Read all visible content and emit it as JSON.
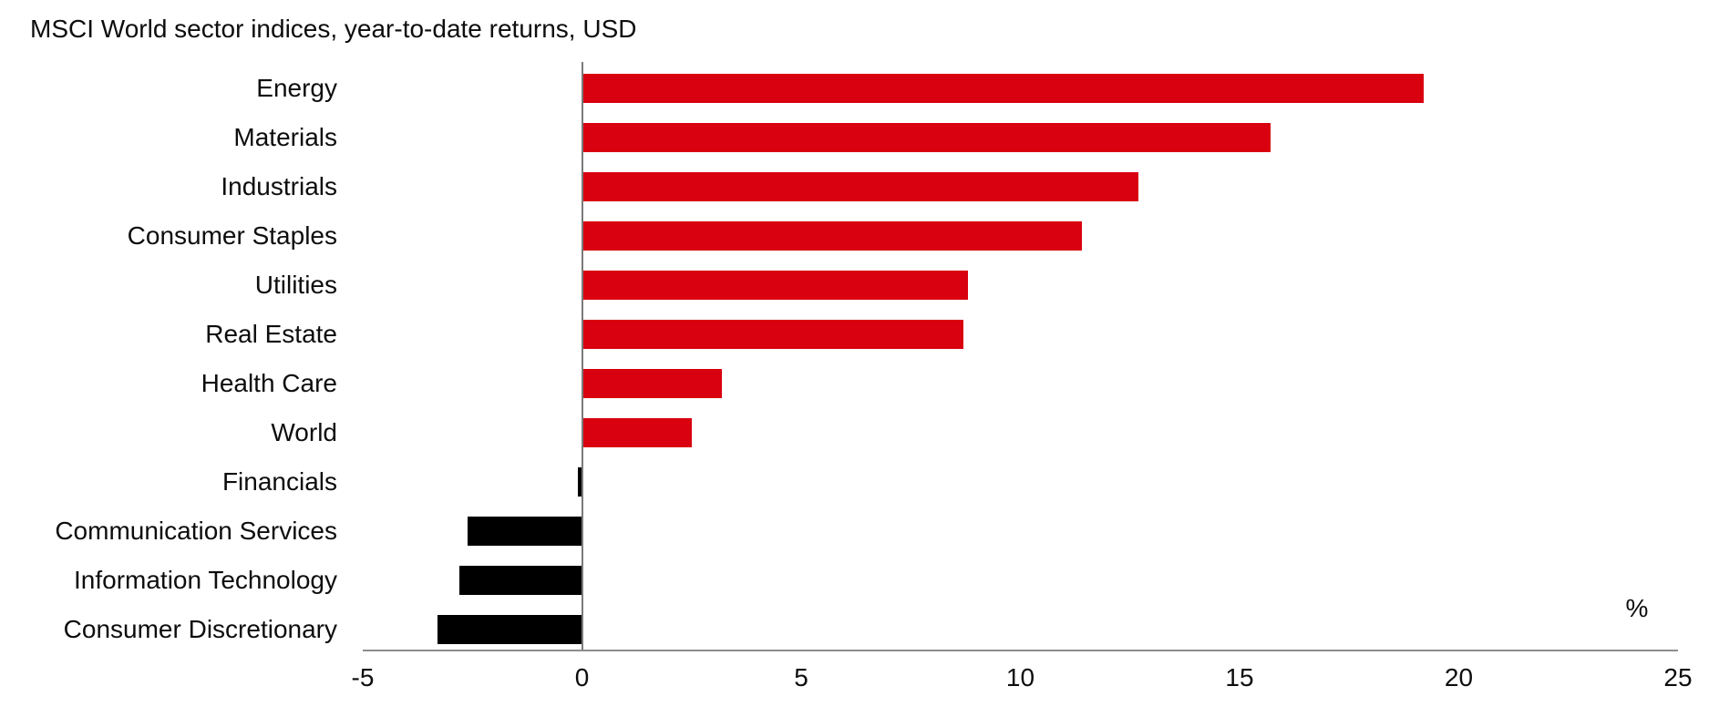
{
  "title": "MSCI World sector indices, year-to-date returns, USD",
  "chart_data": {
    "type": "bar",
    "orientation": "horizontal",
    "title": "MSCI World sector indices, year-to-date returns, USD",
    "categories": [
      "Energy",
      "Materials",
      "Industrials",
      "Consumer Staples",
      "Utilities",
      "Real Estate",
      "Health Care",
      "World",
      "Financials",
      "Communication Services",
      "Information Technology",
      "Consumer Discretionary"
    ],
    "values": [
      19.2,
      15.7,
      12.7,
      11.4,
      8.8,
      8.7,
      3.2,
      2.5,
      -0.1,
      -2.6,
      -2.8,
      -3.3
    ],
    "xlabel": "%",
    "ylabel": "",
    "xlim": [
      -5,
      25
    ],
    "xticks": [
      -5,
      0,
      5,
      10,
      15,
      20,
      25
    ],
    "grid": false,
    "legend": false,
    "positive_color": "#d9000f",
    "negative_color": "#000000"
  },
  "colors": {
    "positive_bar": "#d9000f",
    "negative_bar": "#000000",
    "axis_line": "#8c8c8c",
    "text": "#0d0d0d",
    "background": "#ffffff"
  }
}
